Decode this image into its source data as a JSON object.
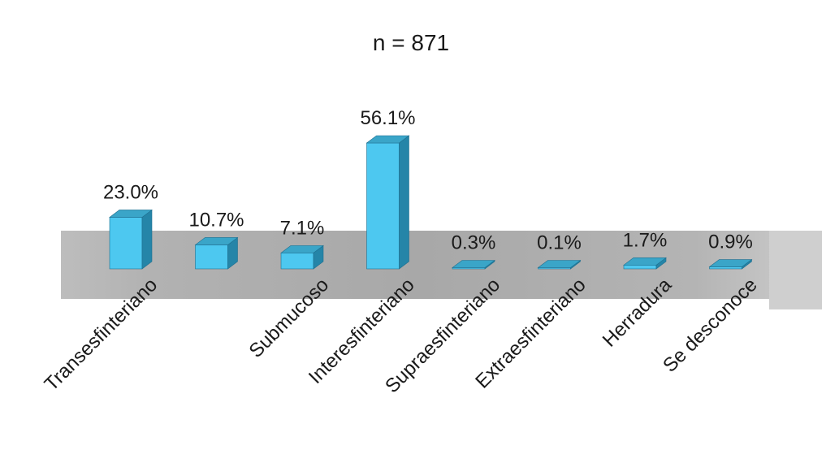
{
  "chart_data": {
    "type": "bar",
    "title": "n = 871",
    "categories": [
      "Transesfinteriano",
      "",
      "Submucoso",
      "Interesfinteriano",
      "Supraesfinteriano",
      "Extraesfinteriano",
      "Herradura",
      "Se desconoce"
    ],
    "values": [
      23.0,
      10.7,
      7.1,
      56.1,
      0.3,
      0.1,
      1.7,
      0.9
    ],
    "value_labels": [
      "23.0%",
      "10.7%",
      "7.1%",
      "56.1%",
      "0.3%",
      "0.1%",
      "1.7%",
      "0.9%"
    ],
    "ylim": [
      0,
      60
    ],
    "grid": false,
    "legend": "none",
    "colors": {
      "bar_front": "#4dc8f0",
      "bar_top": "#3aa5c8",
      "bar_side": "#2585a8",
      "floor": "#b8b8b8"
    }
  }
}
